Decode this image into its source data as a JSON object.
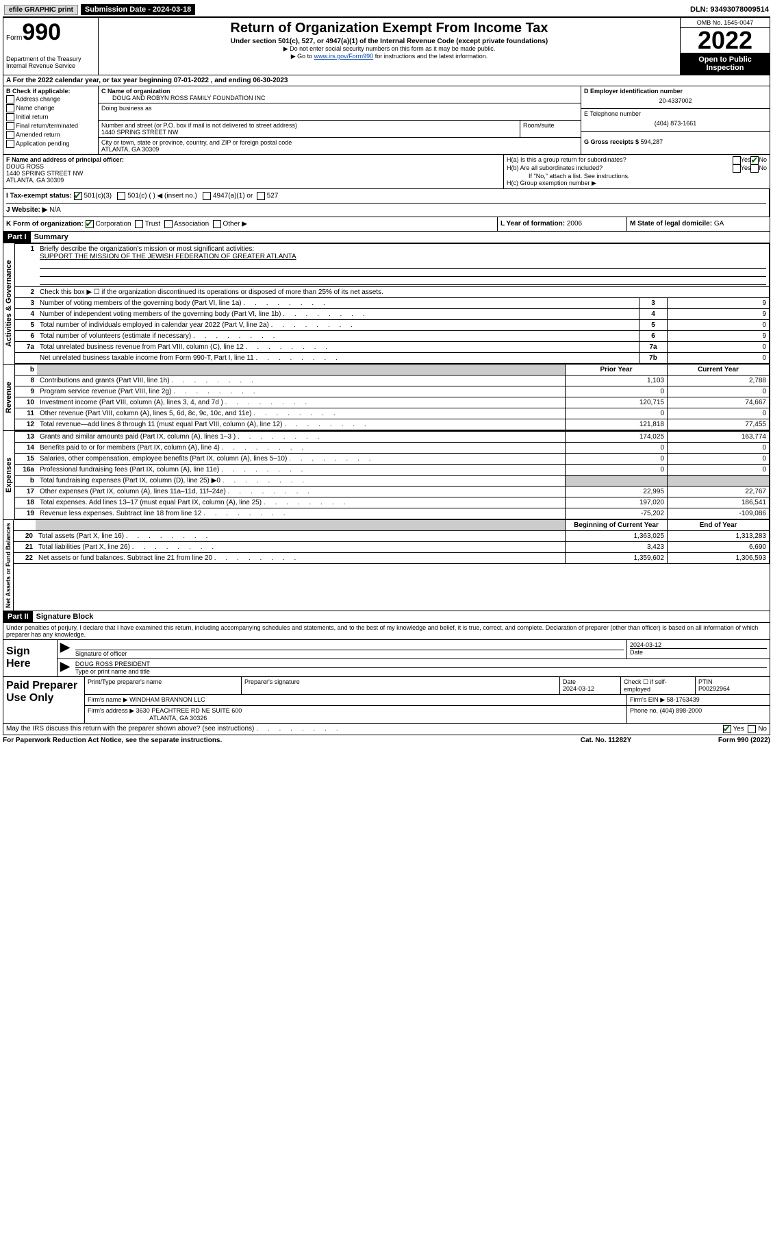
{
  "top": {
    "efile": "efile GRAPHIC print",
    "submission": "Submission Date - 2024-03-18",
    "dln": "DLN: 93493078009514"
  },
  "header": {
    "form_prefix": "Form",
    "form_num": "990",
    "dept": "Department of the Treasury",
    "irs": "Internal Revenue Service",
    "title": "Return of Organization Exempt From Income Tax",
    "sub": "Under section 501(c), 527, or 4947(a)(1) of the Internal Revenue Code (except private foundations)",
    "note1": "▶ Do not enter social security numbers on this form as it may be made public.",
    "note2_pre": "▶ Go to ",
    "note2_link": "www.irs.gov/Form990",
    "note2_post": " for instructions and the latest information.",
    "omb": "OMB No. 1545-0047",
    "year": "2022",
    "open": "Open to Public Inspection"
  },
  "section_a": {
    "text": "A For the 2022 calendar year, or tax year beginning 07-01-2022   , and ending 06-30-2023"
  },
  "block_b": {
    "label": "B Check if applicable:",
    "items": [
      "Address change",
      "Name change",
      "Initial return",
      "Final return/terminated",
      "Amended return",
      "Application pending"
    ]
  },
  "block_c": {
    "name_label": "C Name of organization",
    "name": "DOUG AND ROBYN ROSS FAMILY FOUNDATION INC",
    "dba_label": "Doing business as",
    "street_label": "Number and street (or P.O. box if mail is not delivered to street address)",
    "street": "1440 SPRING STREET NW",
    "room_label": "Room/suite",
    "city_label": "City or town, state or province, country, and ZIP or foreign postal code",
    "city": "ATLANTA, GA  30309"
  },
  "block_d": {
    "label": "D Employer identification number",
    "ein": "20-4337002",
    "tel_label": "E Telephone number",
    "tel": "(404) 873-1661",
    "gross_label": "G Gross receipts $",
    "gross": "594,287"
  },
  "block_f": {
    "label": "F Name and address of principal officer:",
    "name": "DOUG ROSS",
    "street": "1440 SPRING STREET NW",
    "city": "ATLANTA, GA  30309"
  },
  "block_h": {
    "ha": "H(a)  Is this a group return for subordinates?",
    "hb": "H(b)  Are all subordinates included?",
    "hb_note": "If \"No,\" attach a list. See instructions.",
    "hc": "H(c)  Group exemption number ▶"
  },
  "block_i": {
    "label": "I     Tax-exempt status:",
    "opt1": "501(c)(3)",
    "opt2": "501(c) (  ) ◀ (insert no.)",
    "opt3": "4947(a)(1) or",
    "opt4": "527"
  },
  "block_j": {
    "label": "J    Website: ▶",
    "val": "N/A"
  },
  "block_k": {
    "label": "K Form of organization:",
    "opts": [
      "Corporation",
      "Trust",
      "Association",
      "Other ▶"
    ]
  },
  "block_l": {
    "label": "L Year of formation:",
    "val": "2006"
  },
  "block_m": {
    "label": "M State of legal domicile:",
    "val": "GA"
  },
  "part1": {
    "header": "Part I",
    "title": "Summary",
    "briefly": "Briefly describe the organization's mission or most significant activities:",
    "mission": "SUPPORT THE MISSION OF THE JEWISH FEDERATION OF GREATER ATLANTA",
    "line2": "Check this box ▶ ☐ if the organization discontinued its operations or disposed of more than 25% of its net assets.",
    "rows_gov": [
      {
        "n": "3",
        "desc": "Number of voting members of the governing body (Part VI, line 1a)",
        "box": "3",
        "val": "9"
      },
      {
        "n": "4",
        "desc": "Number of independent voting members of the governing body (Part VI, line 1b)",
        "box": "4",
        "val": "9"
      },
      {
        "n": "5",
        "desc": "Total number of individuals employed in calendar year 2022 (Part V, line 2a)",
        "box": "5",
        "val": "0"
      },
      {
        "n": "6",
        "desc": "Total number of volunteers (estimate if necessary)",
        "box": "6",
        "val": "9"
      },
      {
        "n": "7a",
        "desc": "Total unrelated business revenue from Part VIII, column (C), line 12",
        "box": "7a",
        "val": "0"
      },
      {
        "n": "",
        "desc": "Net unrelated business taxable income from Form 990-T, Part I, line 11",
        "box": "7b",
        "val": "0"
      }
    ],
    "col_prior": "Prior Year",
    "col_current": "Current Year",
    "rows_rev": [
      {
        "n": "8",
        "desc": "Contributions and grants (Part VIII, line 1h)",
        "p": "1,103",
        "c": "2,788"
      },
      {
        "n": "9",
        "desc": "Program service revenue (Part VIII, line 2g)",
        "p": "0",
        "c": "0"
      },
      {
        "n": "10",
        "desc": "Investment income (Part VIII, column (A), lines 3, 4, and 7d )",
        "p": "120,715",
        "c": "74,667"
      },
      {
        "n": "11",
        "desc": "Other revenue (Part VIII, column (A), lines 5, 6d, 8c, 9c, 10c, and 11e)",
        "p": "0",
        "c": "0"
      },
      {
        "n": "12",
        "desc": "Total revenue—add lines 8 through 11 (must equal Part VIII, column (A), line 12)",
        "p": "121,818",
        "c": "77,455"
      }
    ],
    "rows_exp": [
      {
        "n": "13",
        "desc": "Grants and similar amounts paid (Part IX, column (A), lines 1–3 )",
        "p": "174,025",
        "c": "163,774"
      },
      {
        "n": "14",
        "desc": "Benefits paid to or for members (Part IX, column (A), line 4)",
        "p": "0",
        "c": "0"
      },
      {
        "n": "15",
        "desc": "Salaries, other compensation, employee benefits (Part IX, column (A), lines 5–10)",
        "p": "0",
        "c": "0"
      },
      {
        "n": "16a",
        "desc": "Professional fundraising fees (Part IX, column (A), line 11e)",
        "p": "0",
        "c": "0"
      },
      {
        "n": "b",
        "desc": "Total fundraising expenses (Part IX, column (D), line 25) ▶0",
        "p": "",
        "c": "",
        "shaded": true
      },
      {
        "n": "17",
        "desc": "Other expenses (Part IX, column (A), lines 11a–11d, 11f–24e)",
        "p": "22,995",
        "c": "22,767"
      },
      {
        "n": "18",
        "desc": "Total expenses. Add lines 13–17 (must equal Part IX, column (A), line 25)",
        "p": "197,020",
        "c": "186,541"
      },
      {
        "n": "19",
        "desc": "Revenue less expenses. Subtract line 18 from line 12",
        "p": "-75,202",
        "c": "-109,086"
      }
    ],
    "col_begin": "Beginning of Current Year",
    "col_end": "End of Year",
    "rows_net": [
      {
        "n": "20",
        "desc": "Total assets (Part X, line 16)",
        "p": "1,363,025",
        "c": "1,313,283"
      },
      {
        "n": "21",
        "desc": "Total liabilities (Part X, line 26)",
        "p": "3,423",
        "c": "6,690"
      },
      {
        "n": "22",
        "desc": "Net assets or fund balances. Subtract line 21 from line 20",
        "p": "1,359,602",
        "c": "1,306,593"
      }
    ]
  },
  "labels": {
    "gov": "Activities & Governance",
    "rev": "Revenue",
    "exp": "Expenses",
    "net": "Net Assets or Fund Balances"
  },
  "part2": {
    "header": "Part II",
    "title": "Signature Block",
    "penalty": "Under penalties of perjury, I declare that I have examined this return, including accompanying schedules and statements, and to the best of my knowledge and belief, it is true, correct, and complete. Declaration of preparer (other than officer) is based on all information of which preparer has any knowledge.",
    "sign_here": "Sign Here",
    "sig_officer": "Signature of officer",
    "sig_date_label": "Date",
    "sig_date": "2024-03-12",
    "sig_name": "DOUG ROSS PRESIDENT",
    "sig_name_label": "Type or print name and title",
    "paid": "Paid Preparer Use Only",
    "pp_name_label": "Print/Type preparer's name",
    "pp_sig_label": "Preparer's signature",
    "pp_date_label": "Date",
    "pp_date": "2024-03-12",
    "pp_check": "Check ☐ if self-employed",
    "ptin_label": "PTIN",
    "ptin": "P00292964",
    "firm_name_label": "Firm's name    ▶",
    "firm_name": "WINDHAM BRANNON LLC",
    "firm_ein_label": "Firm's EIN ▶",
    "firm_ein": "58-1763439",
    "firm_addr_label": "Firm's address ▶",
    "firm_addr1": "3630 PEACHTREE RD NE SUITE 600",
    "firm_addr2": "ATLANTA, GA  30326",
    "firm_phone_label": "Phone no.",
    "firm_phone": "(404) 898-2000",
    "may_irs": "May the IRS discuss this return with the preparer shown above? (see instructions)",
    "yes": "Yes",
    "no": "No"
  },
  "footer": {
    "paperwork": "For Paperwork Reduction Act Notice, see the separate instructions.",
    "cat": "Cat. No. 11282Y",
    "form": "Form 990 (2022)"
  }
}
